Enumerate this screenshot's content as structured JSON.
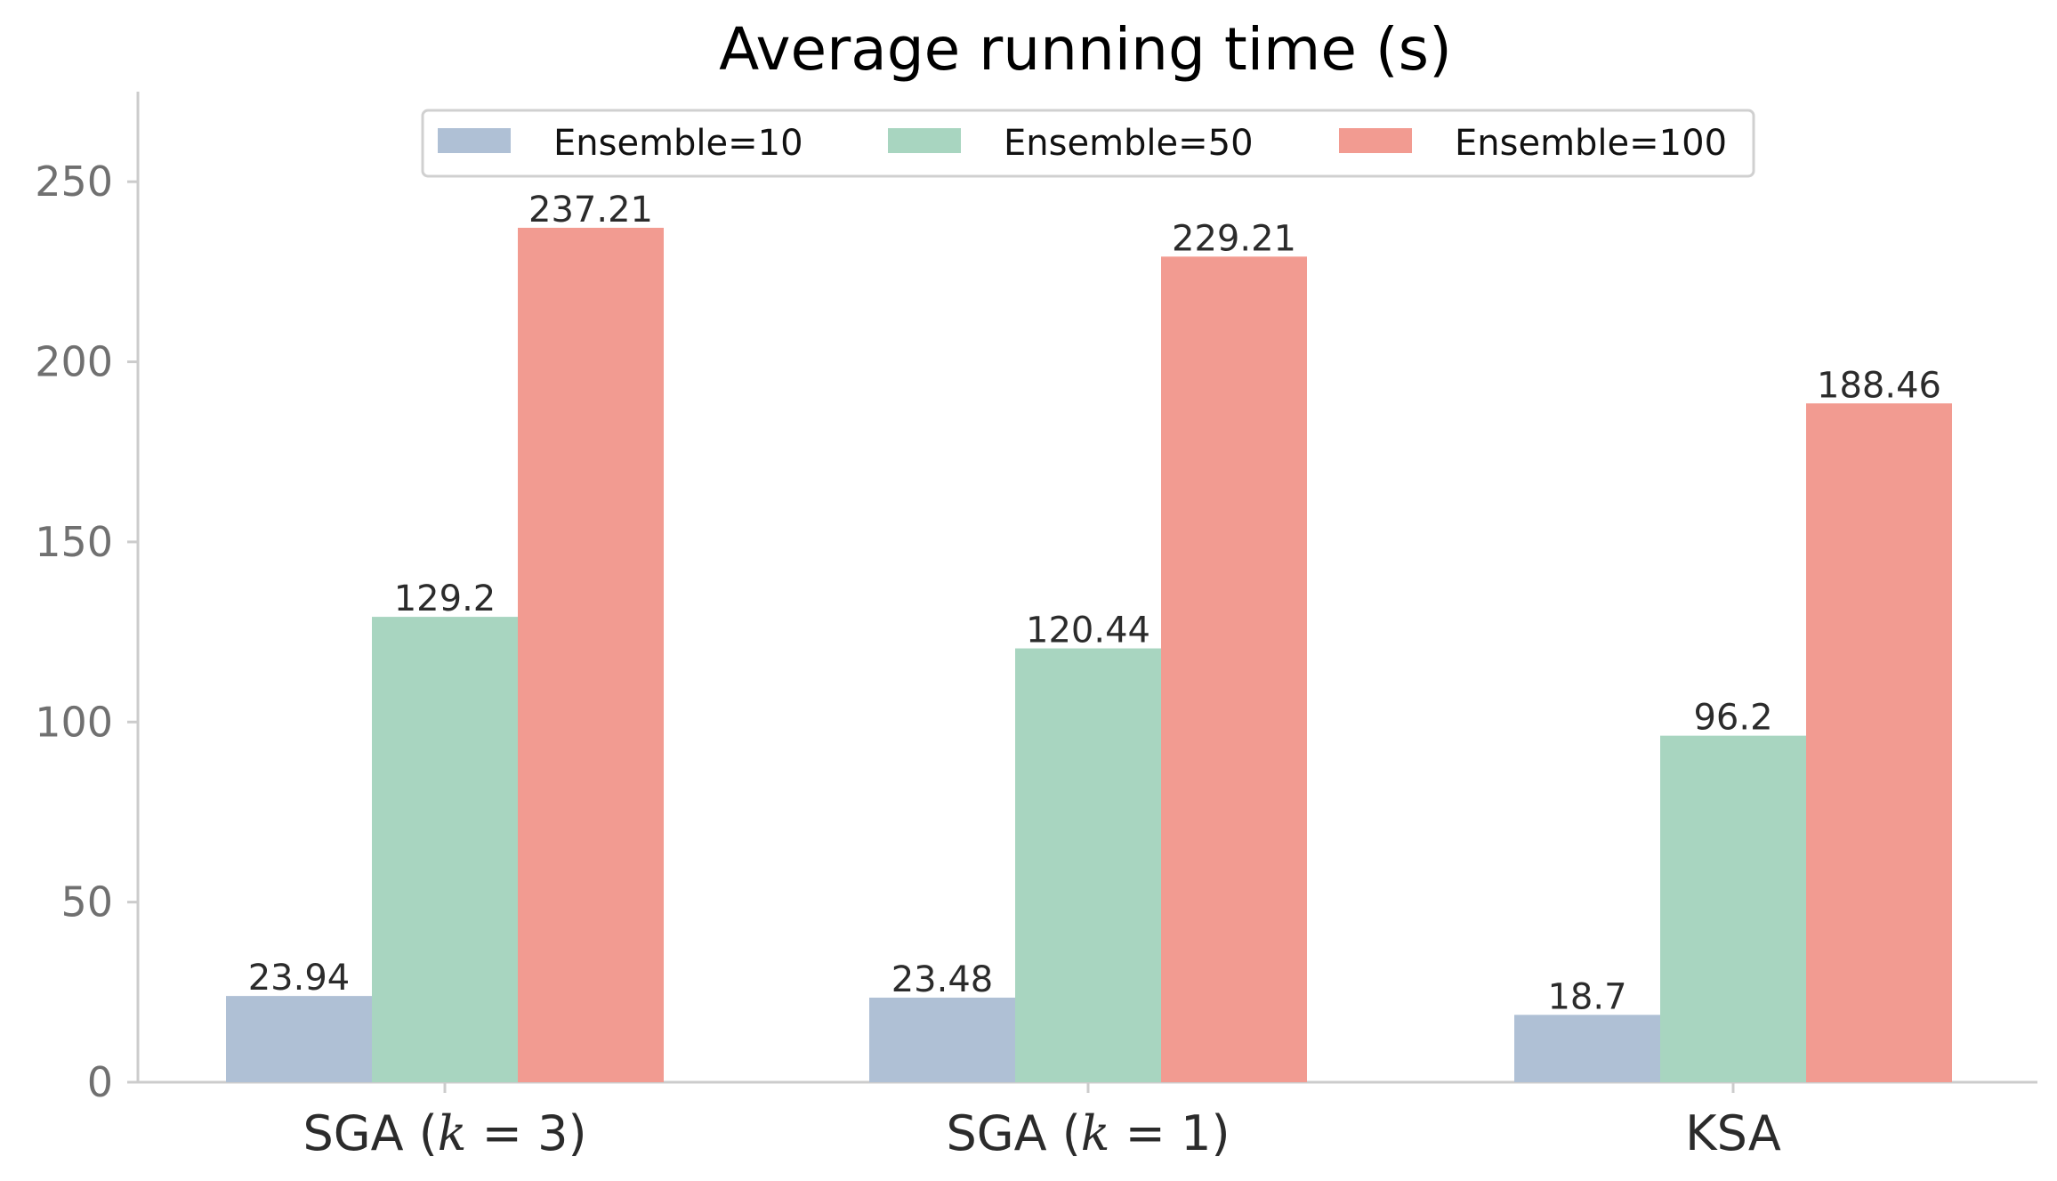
{
  "chart_data": {
    "type": "bar",
    "title": "Average running time (s)",
    "xlabel": "",
    "ylabel": "",
    "categories": [
      {
        "label": "SGA (k = 3)",
        "prefix": "SGA (",
        "italic": "k",
        "suffix": " = 3)"
      },
      {
        "label": "SGA (k = 1)",
        "prefix": "SGA (",
        "italic": "k",
        "suffix": " = 1)"
      },
      {
        "label": "KSA",
        "prefix": "KSA",
        "italic": "",
        "suffix": ""
      }
    ],
    "series": [
      {
        "name": "Ensemble=10",
        "color": "#afc0d5",
        "values": [
          23.94,
          23.48,
          18.7
        ],
        "labels": [
          "23.94",
          "23.48",
          "18.7"
        ]
      },
      {
        "name": "Ensemble=50",
        "color": "#a8d5c0",
        "values": [
          129.2,
          120.44,
          96.2
        ],
        "labels": [
          "129.2",
          "120.44",
          "96.2"
        ]
      },
      {
        "name": "Ensemble=100",
        "color": "#f29b91",
        "values": [
          237.21,
          229.21,
          188.46
        ],
        "labels": [
          "237.21",
          "229.21",
          "188.46"
        ]
      }
    ],
    "ylim": [
      0,
      275
    ],
    "yticks": [
      0,
      50,
      100,
      150,
      200,
      250
    ],
    "ytick_labels": [
      "0",
      "50",
      "100",
      "150",
      "200",
      "250"
    ],
    "grid": false,
    "legend": {
      "position": "top-center",
      "columns": 3
    }
  }
}
